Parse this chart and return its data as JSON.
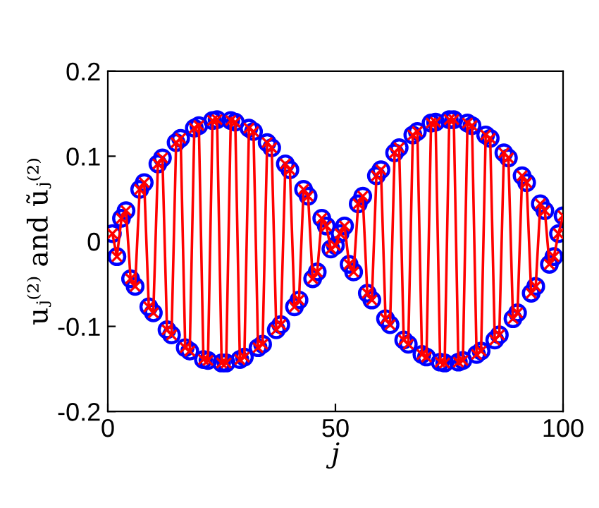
{
  "chart_data": {
    "type": "line",
    "xlabel": "j",
    "ylabel": "uⱼ⁽²⁾ and ũⱼ⁽²⁾",
    "x": [
      1,
      2,
      3,
      4,
      5,
      6,
      7,
      8,
      9,
      10,
      11,
      12,
      13,
      14,
      15,
      16,
      17,
      18,
      19,
      20,
      21,
      22,
      23,
      24,
      25,
      26,
      27,
      28,
      29,
      30,
      31,
      32,
      33,
      34,
      35,
      36,
      37,
      38,
      39,
      40,
      41,
      42,
      43,
      44,
      45,
      46,
      47,
      48,
      49,
      50,
      51,
      52,
      53,
      54,
      55,
      56,
      57,
      58,
      59,
      60,
      61,
      62,
      63,
      64,
      65,
      66,
      67,
      68,
      69,
      70,
      71,
      72,
      73,
      74,
      75,
      76,
      77,
      78,
      79,
      80,
      81,
      82,
      83,
      84,
      85,
      86,
      87,
      88,
      89,
      90,
      91,
      92,
      93,
      94,
      95,
      96,
      97,
      98,
      99,
      100
    ],
    "series": [
      {
        "type": "scatter",
        "marker": "circle",
        "color": "#0000ff",
        "values": [
          0.009,
          -0.018,
          0.027,
          0.036,
          -0.044,
          -0.053,
          0.061,
          0.069,
          -0.077,
          -0.084,
          0.091,
          0.098,
          -0.104,
          -0.11,
          0.116,
          0.121,
          -0.125,
          -0.129,
          0.133,
          0.136,
          -0.139,
          -0.14,
          0.142,
          0.143,
          -0.143,
          -0.143,
          0.142,
          0.14,
          -0.139,
          -0.136,
          0.133,
          0.129,
          -0.125,
          -0.121,
          0.116,
          0.11,
          -0.104,
          -0.098,
          0.091,
          0.084,
          -0.077,
          -0.069,
          0.061,
          0.053,
          -0.044,
          -0.036,
          0.027,
          0.018,
          -0.009,
          -0.005,
          0.009,
          0.018,
          -0.027,
          -0.036,
          0.044,
          0.053,
          -0.061,
          -0.069,
          0.077,
          0.084,
          -0.091,
          -0.098,
          0.104,
          0.11,
          -0.116,
          -0.121,
          0.125,
          0.129,
          -0.133,
          -0.136,
          0.139,
          0.14,
          -0.142,
          -0.143,
          0.143,
          0.143,
          -0.142,
          -0.14,
          0.139,
          0.136,
          -0.133,
          -0.129,
          0.125,
          0.121,
          -0.116,
          -0.11,
          0.104,
          0.098,
          -0.091,
          -0.084,
          0.077,
          0.069,
          -0.061,
          -0.053,
          0.044,
          0.036,
          -0.027,
          -0.018,
          0.009,
          0.03
        ]
      },
      {
        "marker": "cross",
        "line_style": "solid",
        "color": "#ff0000",
        "values": [
          0.009,
          -0.018,
          0.027,
          0.036,
          -0.044,
          -0.053,
          0.061,
          0.069,
          -0.077,
          -0.084,
          0.091,
          0.098,
          -0.104,
          -0.11,
          0.116,
          0.121,
          -0.125,
          -0.129,
          0.133,
          0.136,
          -0.139,
          -0.14,
          0.142,
          0.143,
          -0.143,
          -0.143,
          0.142,
          0.14,
          -0.139,
          -0.136,
          0.133,
          0.129,
          -0.125,
          -0.121,
          0.116,
          0.11,
          -0.104,
          -0.098,
          0.091,
          0.084,
          -0.077,
          -0.069,
          0.061,
          0.053,
          -0.044,
          -0.036,
          0.027,
          0.018,
          -0.009,
          -0.005,
          0.009,
          0.018,
          -0.027,
          -0.036,
          0.044,
          0.053,
          -0.061,
          -0.069,
          0.077,
          0.084,
          -0.091,
          -0.098,
          0.104,
          0.11,
          -0.116,
          -0.121,
          0.125,
          0.129,
          -0.133,
          -0.136,
          0.139,
          0.14,
          -0.142,
          -0.143,
          0.143,
          0.143,
          -0.142,
          -0.14,
          0.139,
          0.136,
          -0.133,
          -0.129,
          0.125,
          0.121,
          -0.116,
          -0.11,
          0.104,
          0.098,
          -0.091,
          -0.084,
          0.077,
          0.069,
          -0.061,
          -0.053,
          0.044,
          0.036,
          -0.027,
          -0.018,
          0.009,
          0.03
        ]
      }
    ],
    "xlim": [
      0,
      100
    ],
    "xticks": [
      0,
      50,
      100
    ],
    "ylim": [
      -0.2,
      0.2
    ],
    "yticks": [
      -0.2,
      -0.1,
      0,
      0.1,
      0.2
    ],
    "grid": false
  }
}
